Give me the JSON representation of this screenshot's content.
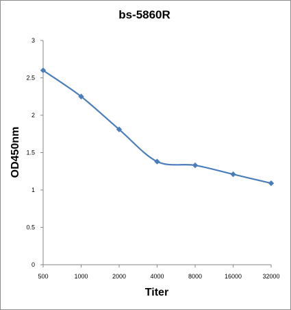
{
  "chart_data": {
    "type": "line",
    "title": "bs-5860R",
    "xlabel": "Titer",
    "ylabel": "OD450nm",
    "categories": [
      "500",
      "1000",
      "2000",
      "4000",
      "8000",
      "16000",
      "32000"
    ],
    "series": [
      {
        "values": [
          2.6,
          2.25,
          1.81,
          1.38,
          1.33,
          1.21,
          1.09
        ]
      }
    ],
    "ylim": [
      0,
      3
    ],
    "yticks": [
      "0",
      "0.5",
      "1",
      "1.5",
      "2",
      "2.5",
      "3"
    ],
    "grid": false,
    "legend": "none",
    "line_color": "#4a7ebb",
    "marker": "diamond"
  }
}
